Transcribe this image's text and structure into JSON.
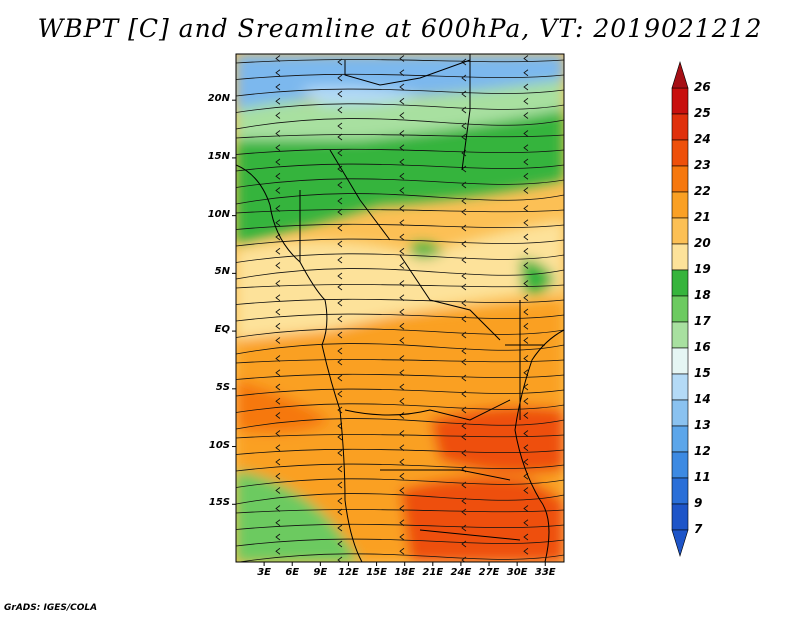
{
  "title": "WBPT [C] and Sreamline at 600hPa, VT: 2019021212",
  "credit": "GrADS: IGES/COLA",
  "map": {
    "lon_range": [
      0,
      35
    ],
    "lat_range": [
      -20,
      24
    ],
    "lat_ticks": [
      {
        "value": 20,
        "label": "20N"
      },
      {
        "value": 15,
        "label": "15N"
      },
      {
        "value": 10,
        "label": "10N"
      },
      {
        "value": 5,
        "label": "5N"
      },
      {
        "value": 0,
        "label": "EQ"
      },
      {
        "value": -5,
        "label": "5S"
      },
      {
        "value": -10,
        "label": "10S"
      },
      {
        "value": -15,
        "label": "15S"
      }
    ],
    "lon_ticks": [
      {
        "value": 3,
        "label": "3E"
      },
      {
        "value": 6,
        "label": "6E"
      },
      {
        "value": 9,
        "label": "9E"
      },
      {
        "value": 12,
        "label": "12E"
      },
      {
        "value": 15,
        "label": "15E"
      },
      {
        "value": 18,
        "label": "18E"
      },
      {
        "value": 21,
        "label": "21E"
      },
      {
        "value": 24,
        "label": "24E"
      },
      {
        "value": 27,
        "label": "27E"
      },
      {
        "value": 30,
        "label": "30E"
      },
      {
        "value": 33,
        "label": "33E"
      }
    ]
  },
  "colorbar": {
    "levels": [
      {
        "label": "26",
        "color": "#a50f15"
      },
      {
        "label": "25",
        "color": "#c8100e"
      },
      {
        "label": "24",
        "color": "#e0300c"
      },
      {
        "label": "23",
        "color": "#ee500a"
      },
      {
        "label": "22",
        "color": "#f6780e"
      },
      {
        "label": "21",
        "color": "#faa024"
      },
      {
        "label": "20",
        "color": "#fcc055"
      },
      {
        "label": "19",
        "color": "#fde29a"
      },
      {
        "label": "18",
        "color": "#36b43c"
      },
      {
        "label": "17",
        "color": "#6cca60"
      },
      {
        "label": "16",
        "color": "#a8e0a0"
      },
      {
        "label": "15",
        "color": "#e6f6f4"
      },
      {
        "label": "14",
        "color": "#b4daf6"
      },
      {
        "label": "13",
        "color": "#8ac2f0"
      },
      {
        "label": "12",
        "color": "#5ca6ea"
      },
      {
        "label": "11",
        "color": "#3d8ae2"
      },
      {
        "label": "9",
        "color": "#2a6fd8"
      },
      {
        "label": "7",
        "color": "#1e55c8"
      }
    ]
  },
  "field_colors": {
    "blue": "#7cb8ee",
    "light_blue": "#b4daf6",
    "pale_green": "#a8e0a0",
    "green": "#36b43c",
    "mid_green": "#6cca60",
    "pale_yellow": "#fde29a",
    "light_orange": "#fcc055",
    "orange": "#faa024",
    "dark_orange": "#f6780e",
    "red_orange": "#ee500a"
  }
}
